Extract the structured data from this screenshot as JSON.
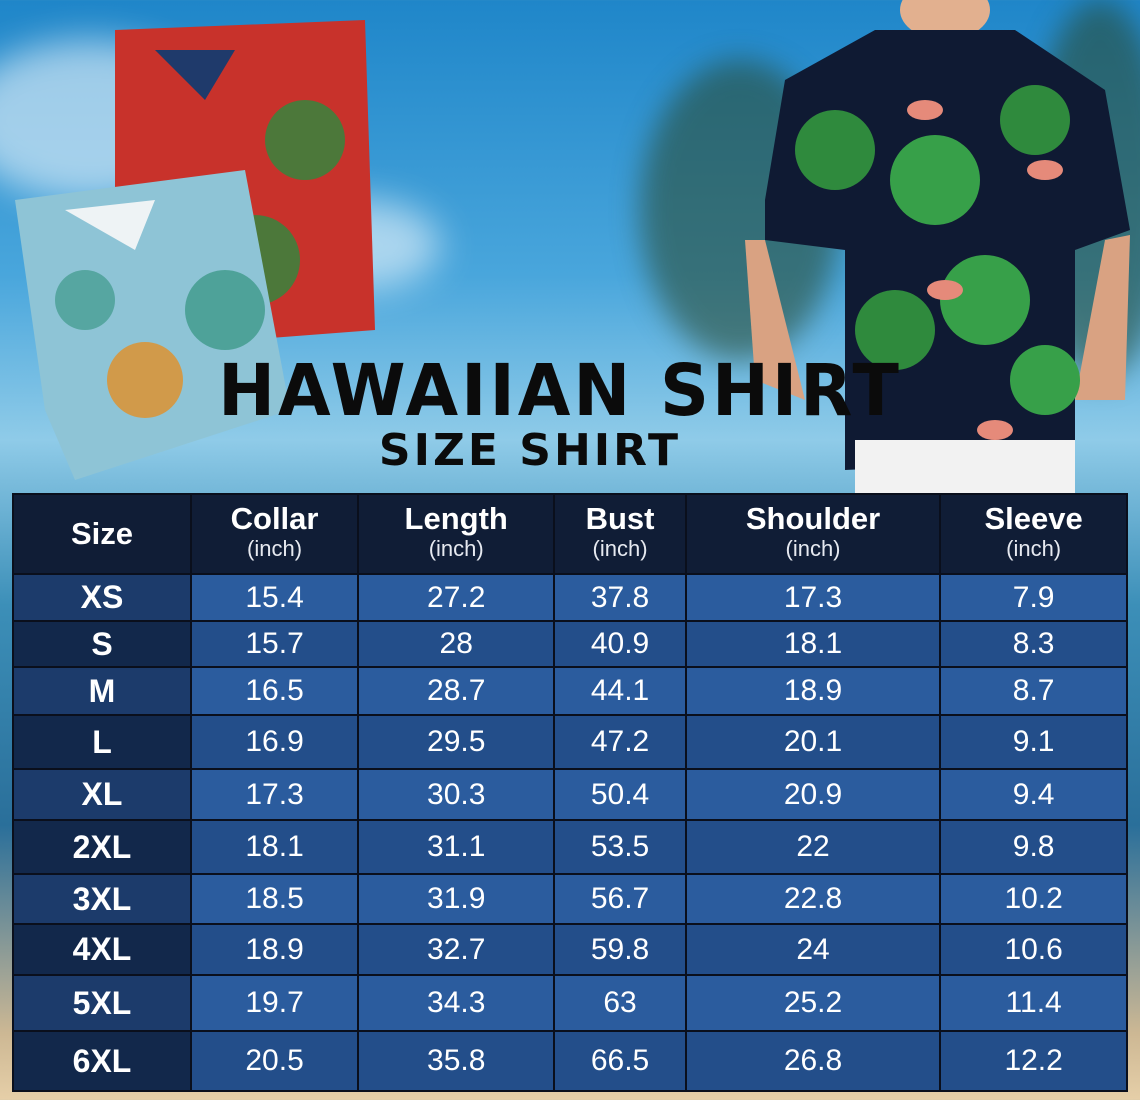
{
  "title": "HAWAIIAN SHIRT",
  "subtitle": "SIZE SHIRT",
  "colors": {
    "header_bg": "#101d36",
    "cell_light": "#2b5c9e",
    "cell_dark": "#234e8a",
    "size_col": "#13284a"
  },
  "table": {
    "headers": [
      {
        "label": "Size",
        "unit": ""
      },
      {
        "label": "Collar",
        "unit": "(inch)"
      },
      {
        "label": "Length",
        "unit": "(inch)"
      },
      {
        "label": "Bust",
        "unit": "(inch)"
      },
      {
        "label": "Shoulder",
        "unit": "(inch)"
      },
      {
        "label": "Sleeve",
        "unit": "(inch)"
      }
    ],
    "rows": [
      [
        "XS",
        "15.4",
        "27.2",
        "37.8",
        "17.3",
        "7.9"
      ],
      [
        "S",
        "15.7",
        "28",
        "40.9",
        "18.1",
        "8.3"
      ],
      [
        "M",
        "16.5",
        "28.7",
        "44.1",
        "18.9",
        "8.7"
      ],
      [
        "L",
        "16.9",
        "29.5",
        "47.2",
        "20.1",
        "9.1"
      ],
      [
        "XL",
        "17.3",
        "30.3",
        "50.4",
        "20.9",
        "9.4"
      ],
      [
        "2XL",
        "18.1",
        "31.1",
        "53.5",
        "22",
        "9.8"
      ],
      [
        "3XL",
        "18.5",
        "31.9",
        "56.7",
        "22.8",
        "10.2"
      ],
      [
        "4XL",
        "18.9",
        "32.7",
        "59.8",
        "24",
        "10.6"
      ],
      [
        "5XL",
        "19.7",
        "34.3",
        "63",
        "25.2",
        "11.4"
      ],
      [
        "6XL",
        "20.5",
        "35.8",
        "66.5",
        "26.8",
        "12.2"
      ]
    ]
  }
}
